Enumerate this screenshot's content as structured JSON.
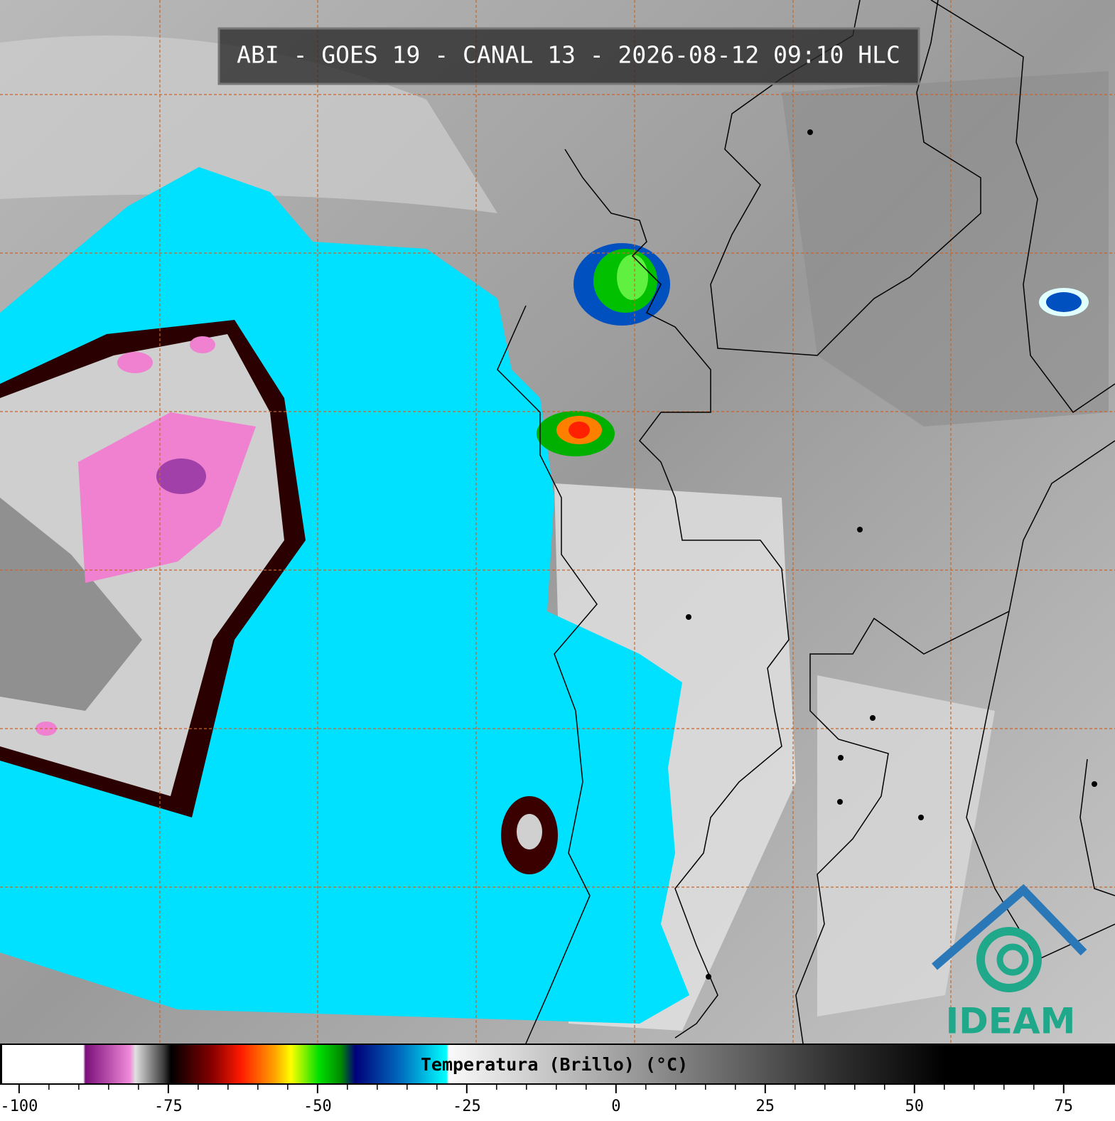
{
  "header": {
    "title": "ABI - GOES 19 - CANAL 13 - 2026-08-12 09:10 HLC"
  },
  "colorbar": {
    "label": "Temperatura (Brillo) (°C)",
    "lim": [
      -103.2,
      83.6
    ],
    "ticks": [
      -100,
      -75,
      -50,
      -25,
      0,
      25,
      50,
      75
    ]
  },
  "logo": {
    "text": "IDEAM"
  }
}
